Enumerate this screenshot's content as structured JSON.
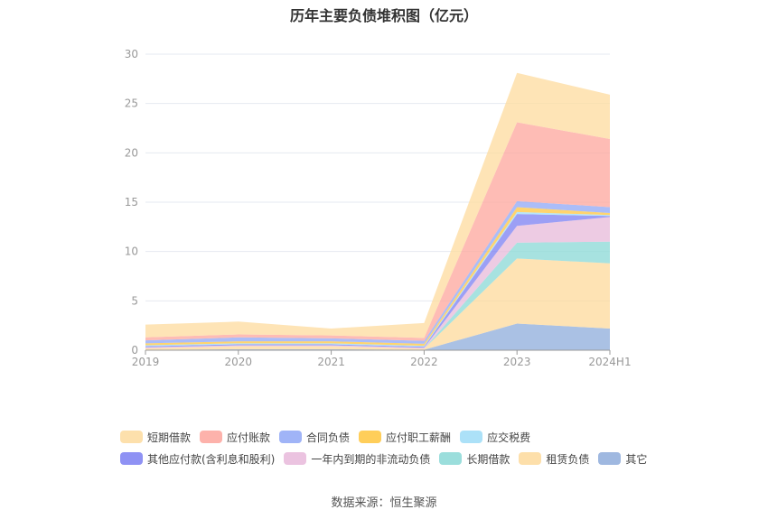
{
  "chart_data": {
    "type": "area",
    "stacked": true,
    "title": "历年主要负债堆积图（亿元）",
    "categories": [
      "2019",
      "2020",
      "2021",
      "2022",
      "2023",
      "2024H1"
    ],
    "ylim": [
      0,
      30
    ],
    "yticks": [
      0,
      5,
      10,
      15,
      20,
      25,
      30
    ],
    "grid": true,
    "legend_position": "bottom",
    "series": [
      {
        "name": "其它",
        "color": "#8eacdb",
        "values": [
          0.05,
          0.1,
          0.1,
          0.05,
          2.7,
          2.2
        ]
      },
      {
        "name": "租赁负债",
        "color": "#fdd99b",
        "values": [
          0.15,
          0.3,
          0.3,
          0.1,
          6.6,
          6.6
        ]
      },
      {
        "name": "长期借款",
        "color": "#8ad8d6",
        "values": [
          0,
          0,
          0,
          0,
          1.6,
          2.2
        ]
      },
      {
        "name": "一年内到期的非流动负债",
        "color": "#e7b9da",
        "values": [
          0.1,
          0.1,
          0.1,
          0.1,
          1.7,
          2.5
        ]
      },
      {
        "name": "其他应付款(含利息和股利)",
        "color": "#7b7ff2",
        "values": [
          0.1,
          0.1,
          0.1,
          0.1,
          1.2,
          0.1
        ]
      },
      {
        "name": "应交税费",
        "color": "#9ddcf7",
        "values": [
          0.1,
          0.1,
          0.1,
          0.1,
          0.2,
          0.1
        ]
      },
      {
        "name": "应付职工薪酬",
        "color": "#ffc53d",
        "values": [
          0.2,
          0.2,
          0.2,
          0.2,
          0.5,
          0.2
        ]
      },
      {
        "name": "合同负债",
        "color": "#8fa7f6",
        "values": [
          0.3,
          0.4,
          0.3,
          0.3,
          0.6,
          0.6
        ]
      },
      {
        "name": "应付账款",
        "color": "#fda59c",
        "values": [
          0.3,
          0.3,
          0.3,
          0.3,
          8.0,
          6.9
        ]
      },
      {
        "name": "短期借款",
        "color": "#fddb9e",
        "values": [
          1.3,
          1.3,
          0.7,
          1.5,
          5.0,
          4.5
        ]
      }
    ],
    "legend_order": [
      "短期借款",
      "应付账款",
      "合同负债",
      "应付职工薪酬",
      "应交税费",
      "其他应付款(含利息和股利)",
      "一年内到期的非流动负债",
      "长期借款",
      "租赁负债",
      "其它"
    ]
  },
  "source": "数据来源：恒生聚源"
}
